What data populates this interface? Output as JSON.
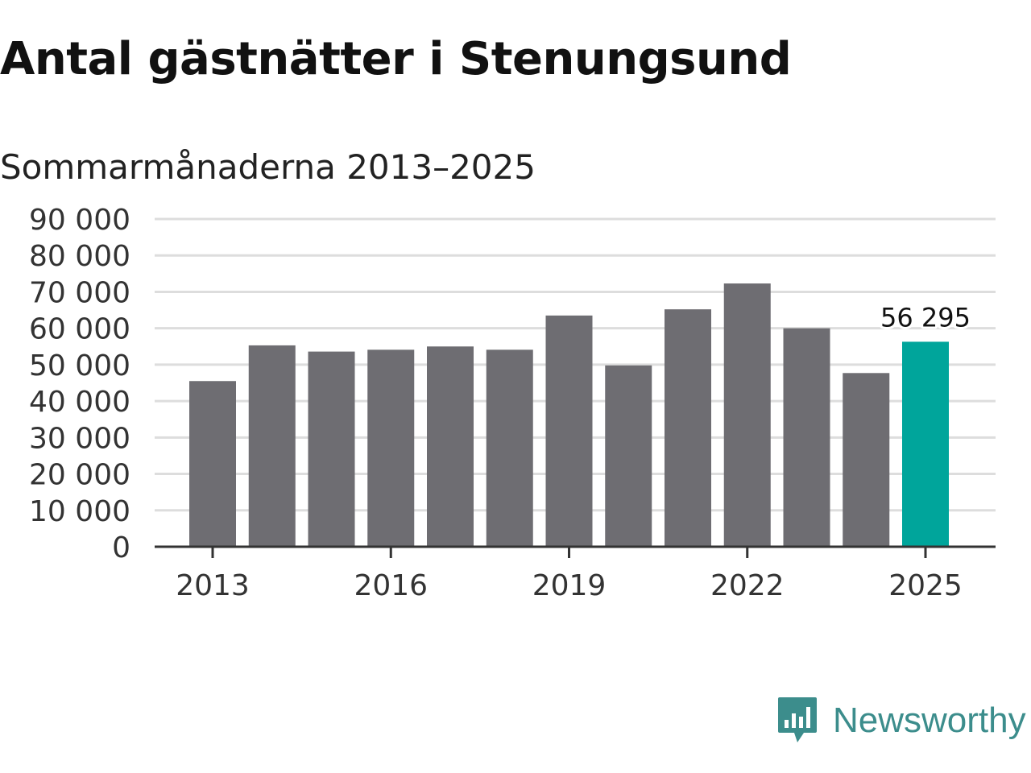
{
  "header": {
    "title": "Antal gästnätter i Stenungsund",
    "subtitle": "Sommarmånaderna 2013–2025"
  },
  "brand": {
    "name": "Newsworthy",
    "icon": "newsworthy-logo-icon",
    "color": "#3c8d8c"
  },
  "colors": {
    "bar": "#6e6d72",
    "highlight": "#00a59b",
    "grid": "#dddddd",
    "axis": "#333333"
  },
  "chart_data": {
    "type": "bar",
    "categories": [
      "2013",
      "2014",
      "2015",
      "2016",
      "2017",
      "2018",
      "2019",
      "2020",
      "2021",
      "2022",
      "2023",
      "2024",
      "2025"
    ],
    "values": [
      45500,
      55300,
      53600,
      54100,
      55000,
      54100,
      63500,
      49800,
      65200,
      72300,
      60000,
      47700,
      56295
    ],
    "highlight_index": 12,
    "data_labels": [
      {
        "index": 12,
        "text": "56 295"
      }
    ],
    "x_tick_labels": [
      "2013",
      "2016",
      "2019",
      "2022",
      "2025"
    ],
    "y_tick_labels": [
      "0",
      "10 000",
      "20 000",
      "30 000",
      "40 000",
      "50 000",
      "60 000",
      "70 000",
      "80 000",
      "90 000"
    ],
    "ylim": [
      0,
      90000
    ],
    "grid": true,
    "title": "Antal gästnätter i Stenungsund",
    "subtitle": "Sommarmånaderna 2013–2025",
    "xlabel": "",
    "ylabel": ""
  }
}
